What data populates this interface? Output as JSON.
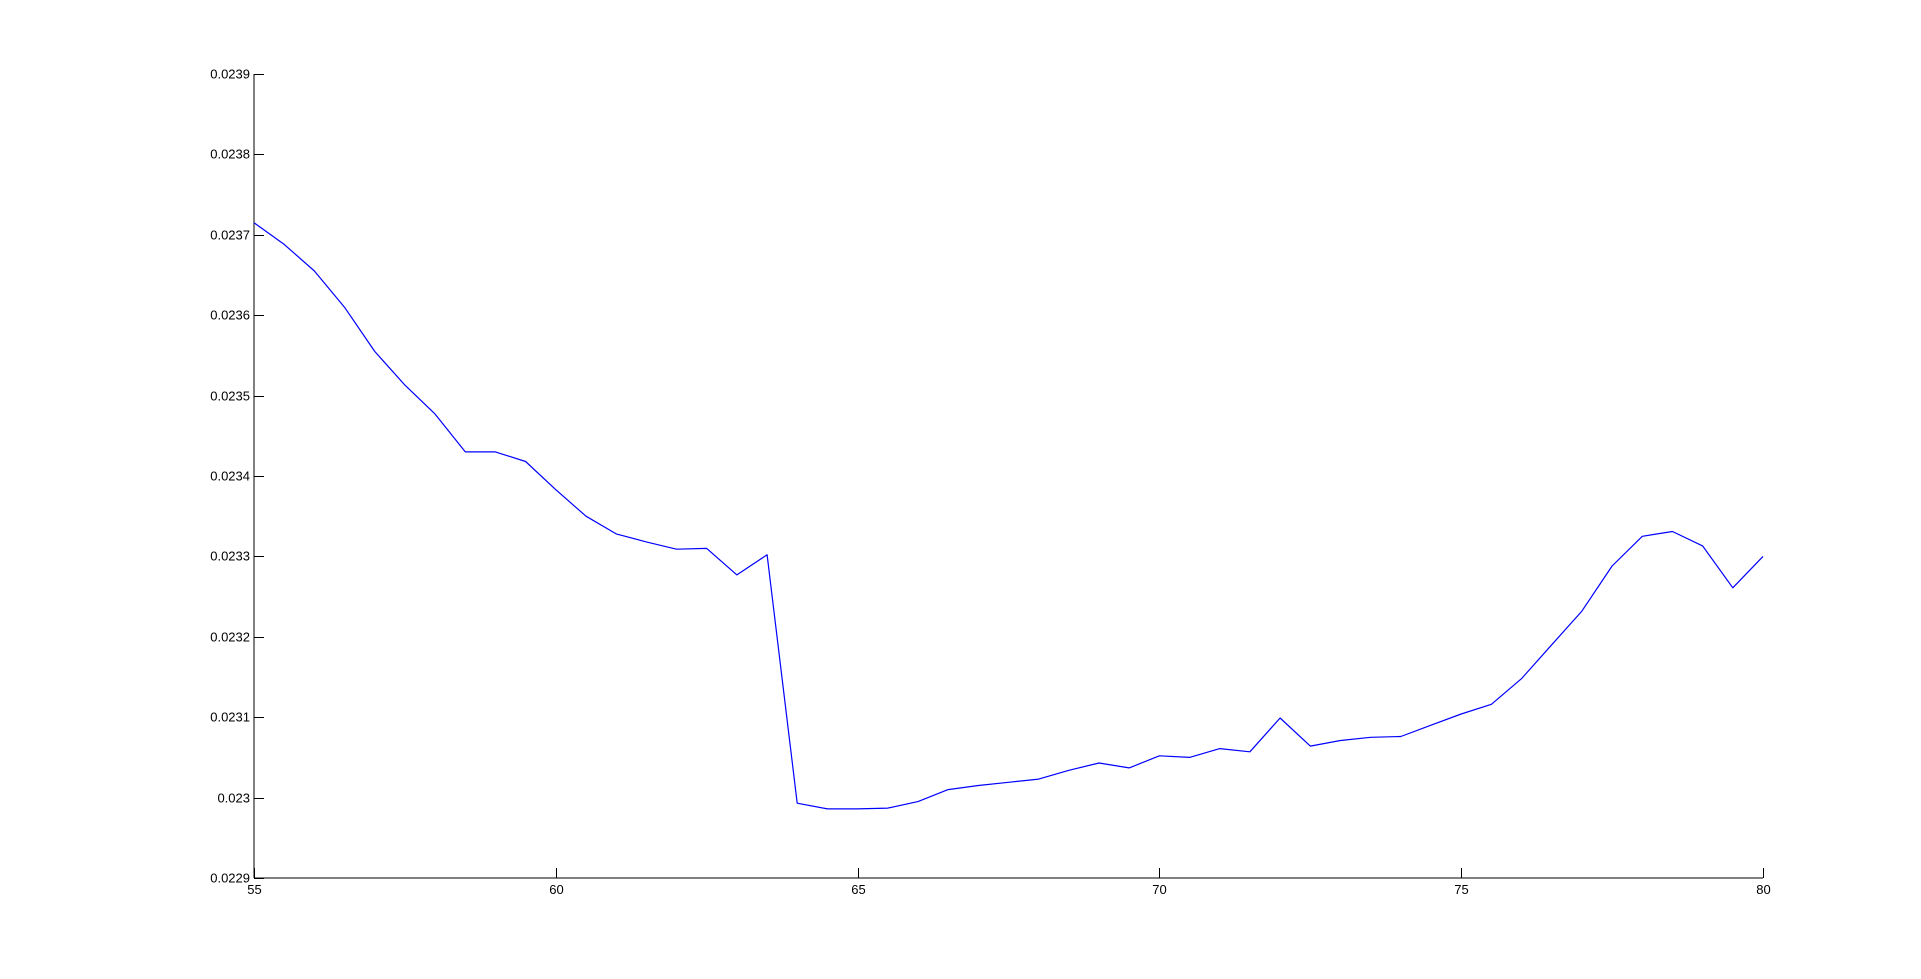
{
  "chart_data": {
    "type": "line",
    "title": "",
    "xlabel": "",
    "ylabel": "",
    "xlim": [
      55,
      80
    ],
    "ylim": [
      0.0229,
      0.0239
    ],
    "grid": false,
    "x_ticks": [
      55,
      60,
      65,
      70,
      75,
      80
    ],
    "x_tick_labels": [
      "55",
      "60",
      "65",
      "70",
      "75",
      "80"
    ],
    "y_ticks": [
      0.0229,
      0.023,
      0.0231,
      0.0232,
      0.0233,
      0.0234,
      0.0235,
      0.0236,
      0.0237,
      0.0238,
      0.0239
    ],
    "y_tick_labels": [
      "0.0229",
      "0.023",
      "0.0231",
      "0.0232",
      "0.0233",
      "0.0234",
      "0.0235",
      "0.0236",
      "0.0237",
      "0.0238",
      "0.0239"
    ],
    "series": [
      {
        "color": "#0000ff",
        "x": [
          55,
          55.5,
          56,
          56.5,
          57,
          57.5,
          58,
          58.5,
          59,
          59.5,
          60,
          60.5,
          61,
          61.5,
          62,
          62.5,
          63,
          63.5,
          64,
          64.5,
          65,
          65.5,
          66,
          66.5,
          67,
          67.5,
          68,
          68.5,
          69,
          69.5,
          70,
          70.5,
          71,
          71.5,
          72,
          72.5,
          73,
          73.5,
          74,
          74.5,
          75,
          75.5,
          76,
          76.5,
          77,
          77.5,
          78,
          78.5,
          79,
          79.5,
          80
        ],
        "y": [
          0.023715,
          0.023688,
          0.023655,
          0.02361,
          0.023555,
          0.023513,
          0.023477,
          0.02343,
          0.02343,
          0.023418,
          0.023383,
          0.02335,
          0.023328,
          0.023318,
          0.023309,
          0.02331,
          0.023277,
          0.023302,
          0.022993,
          0.022986,
          0.022986,
          0.022987,
          0.022995,
          0.02301,
          0.023015,
          0.023019,
          0.023023,
          0.023034,
          0.023043,
          0.023037,
          0.023052,
          0.02305,
          0.023061,
          0.023057,
          0.023099,
          0.023064,
          0.023071,
          0.023075,
          0.023076,
          0.02309,
          0.023104,
          0.023116,
          0.023148,
          0.02319,
          0.023232,
          0.023288,
          0.023325,
          0.023331,
          0.023313,
          0.023261,
          0.0233
        ]
      }
    ]
  }
}
